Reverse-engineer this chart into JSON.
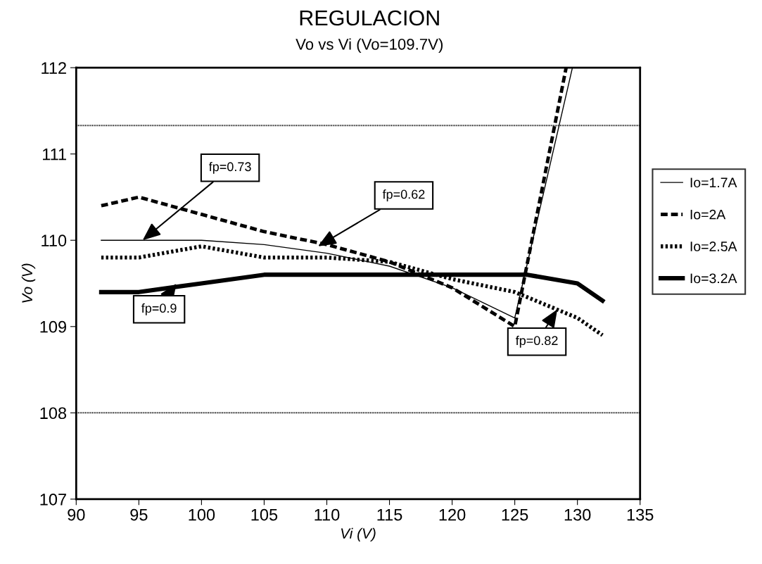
{
  "chart_data": {
    "type": "line",
    "title": "REGULACION",
    "subtitle": "Vo vs Vi (Vo=109.7V)",
    "xlabel": "Vi (V)",
    "ylabel": "Vo (V)",
    "xlim": [
      90,
      135
    ],
    "xticks": [
      90,
      95,
      100,
      105,
      110,
      115,
      120,
      125,
      130,
      135
    ],
    "ylim": [
      107,
      112
    ],
    "yticks": [
      107,
      108,
      109,
      110,
      111,
      112
    ],
    "grid": false,
    "legend": "right",
    "marker": "none",
    "series": [
      {
        "name": "Io=1.7A",
        "color": "#000000",
        "line_style": "solid",
        "x": [
          92,
          100,
          105,
          110,
          115,
          120,
          125,
          129.6
        ],
        "values": [
          110.0,
          110.0,
          109.95,
          109.85,
          109.7,
          109.45,
          109.1,
          112.0
        ]
      },
      {
        "name": "Io=2A",
        "color": "#000000",
        "line_style": "dashed",
        "x": [
          92,
          95,
          100,
          105,
          110,
          115,
          120,
          125,
          129.1
        ],
        "values": [
          110.4,
          110.5,
          110.3,
          110.1,
          109.95,
          109.75,
          109.45,
          109.0,
          112.0
        ]
      },
      {
        "name": "Io=2.5A",
        "color": "#000000",
        "line_style": "dotted",
        "x": [
          92,
          95,
          100,
          105,
          110,
          115,
          120,
          125,
          130,
          132
        ],
        "values": [
          109.8,
          109.8,
          109.93,
          109.8,
          109.8,
          109.75,
          109.55,
          109.4,
          109.1,
          108.9
        ]
      },
      {
        "name": "Io=3.2A",
        "color": "#000000",
        "line_style": "solid",
        "x": [
          92,
          95,
          100,
          105,
          110,
          120,
          126,
          130,
          132
        ],
        "values": [
          109.4,
          109.4,
          109.5,
          109.6,
          109.6,
          109.6,
          109.6,
          109.5,
          109.3
        ]
      }
    ],
    "ref_lines": [
      {
        "axis": "y",
        "value": 111.33,
        "line_style": "dotted",
        "color": "#000000"
      },
      {
        "axis": "y",
        "value": 108,
        "line_style": "dotted",
        "color": "#000000"
      }
    ],
    "annotations": [
      {
        "text": "fp=0.73",
        "x": 95.3,
        "y": 110.0
      },
      {
        "text": "fp=0.62",
        "x": 109.3,
        "y": 109.93
      },
      {
        "text": "fp=0.9",
        "x": 98,
        "y": 109.5
      },
      {
        "text": "fp=0.82",
        "x": 128.4,
        "y": 109.2
      }
    ]
  }
}
